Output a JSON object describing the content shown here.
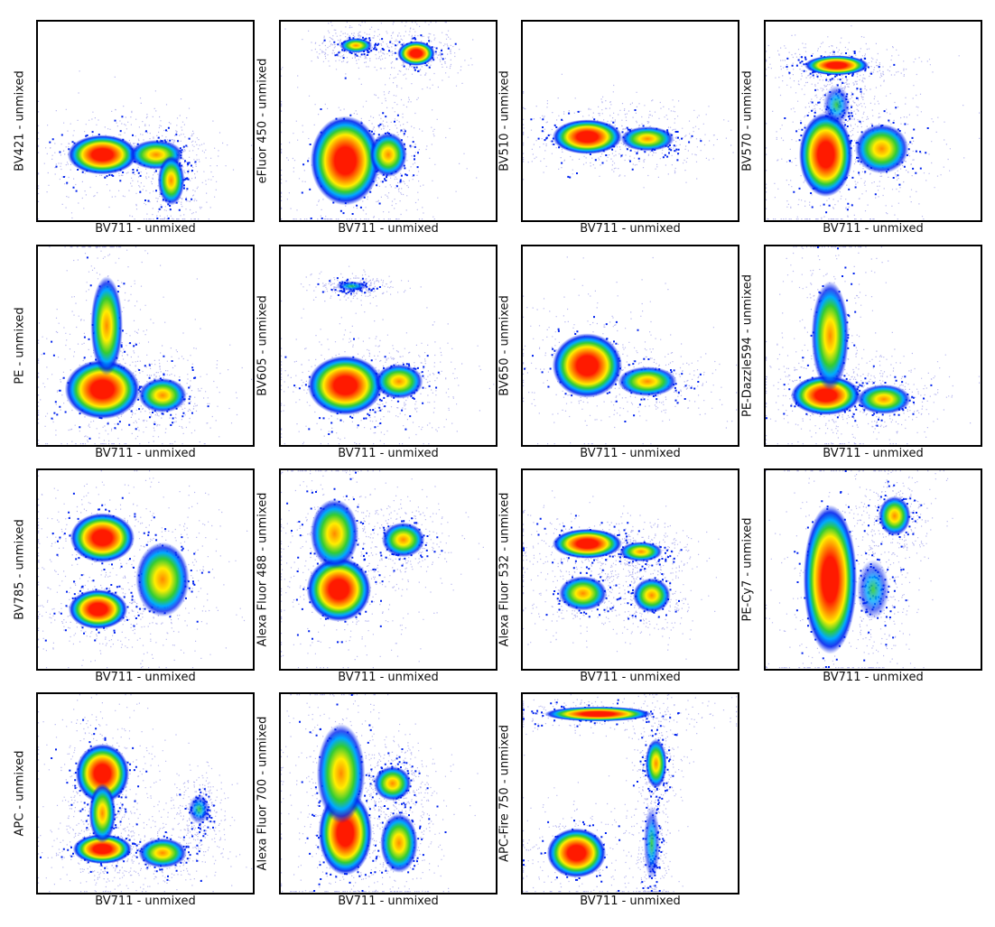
{
  "chart_data": [
    {
      "type": "scatter",
      "subtype": "density",
      "xlabel": "BV711 - unmixed",
      "ylabel": "BV421 - unmixed",
      "populations": [
        [
          0.3,
          0.33,
          0.13,
          0.08,
          1
        ],
        [
          0.55,
          0.33,
          0.1,
          0.06,
          0.7
        ],
        [
          0.62,
          0.2,
          0.05,
          0.1,
          0.6
        ]
      ]
    },
    {
      "type": "scatter",
      "subtype": "density",
      "xlabel": "BV711 - unmixed",
      "ylabel": "eFluor 450 - unmixed",
      "populations": [
        [
          0.3,
          0.3,
          0.13,
          0.18,
          1
        ],
        [
          0.5,
          0.33,
          0.07,
          0.09,
          0.6
        ],
        [
          0.35,
          0.88,
          0.06,
          0.03,
          0.6
        ],
        [
          0.63,
          0.84,
          0.07,
          0.05,
          0.85
        ]
      ]
    },
    {
      "type": "scatter",
      "subtype": "density",
      "xlabel": "BV711 - unmixed",
      "ylabel": "BV510 - unmixed",
      "populations": [
        [
          0.3,
          0.42,
          0.13,
          0.07,
          1
        ],
        [
          0.58,
          0.41,
          0.1,
          0.05,
          0.8
        ]
      ]
    },
    {
      "type": "scatter",
      "subtype": "density",
      "xlabel": "BV711 - unmixed",
      "ylabel": "BV570 - unmixed",
      "populations": [
        [
          0.33,
          0.78,
          0.12,
          0.04,
          1
        ],
        [
          0.28,
          0.33,
          0.1,
          0.17,
          0.9
        ],
        [
          0.54,
          0.36,
          0.1,
          0.1,
          0.7
        ],
        [
          0.33,
          0.58,
          0.05,
          0.08,
          0.5
        ]
      ]
    },
    {
      "type": "scatter",
      "subtype": "density",
      "xlabel": "BV711 - unmixed",
      "ylabel": "PE - unmixed",
      "populations": [
        [
          0.3,
          0.28,
          0.14,
          0.12,
          1
        ],
        [
          0.32,
          0.6,
          0.06,
          0.2,
          0.6
        ],
        [
          0.58,
          0.25,
          0.09,
          0.07,
          0.7
        ]
      ]
    },
    {
      "type": "scatter",
      "subtype": "density",
      "xlabel": "BV711 - unmixed",
      "ylabel": "BV605 - unmixed",
      "populations": [
        [
          0.3,
          0.3,
          0.14,
          0.12,
          1
        ],
        [
          0.55,
          0.32,
          0.09,
          0.07,
          0.75
        ],
        [
          0.33,
          0.8,
          0.06,
          0.02,
          0.4
        ]
      ]
    },
    {
      "type": "scatter",
      "subtype": "density",
      "xlabel": "BV711 - unmixed",
      "ylabel": "BV650 - unmixed",
      "populations": [
        [
          0.3,
          0.4,
          0.13,
          0.13,
          1
        ],
        [
          0.58,
          0.32,
          0.11,
          0.06,
          0.75
        ]
      ]
    },
    {
      "type": "scatter",
      "subtype": "density",
      "xlabel": "BV711 - unmixed",
      "ylabel": "PE-Dazzle594 - unmixed",
      "populations": [
        [
          0.28,
          0.25,
          0.13,
          0.08,
          1
        ],
        [
          0.3,
          0.55,
          0.07,
          0.22,
          0.7
        ],
        [
          0.55,
          0.23,
          0.1,
          0.06,
          0.8
        ]
      ]
    },
    {
      "type": "scatter",
      "subtype": "density",
      "xlabel": "BV711 - unmixed",
      "ylabel": "BV785 - unmixed",
      "populations": [
        [
          0.3,
          0.66,
          0.12,
          0.1,
          1
        ],
        [
          0.28,
          0.3,
          0.11,
          0.08,
          1
        ],
        [
          0.58,
          0.45,
          0.1,
          0.15,
          0.6
        ]
      ]
    },
    {
      "type": "scatter",
      "subtype": "density",
      "xlabel": "BV711 - unmixed",
      "ylabel": "Alexa Fluor 488 - unmixed",
      "populations": [
        [
          0.27,
          0.4,
          0.12,
          0.13,
          1
        ],
        [
          0.25,
          0.68,
          0.09,
          0.14,
          0.7
        ],
        [
          0.57,
          0.65,
          0.08,
          0.07,
          0.75
        ]
      ]
    },
    {
      "type": "scatter",
      "subtype": "density",
      "xlabel": "BV711 - unmixed",
      "ylabel": "Alexa Fluor 532 - unmixed",
      "populations": [
        [
          0.3,
          0.63,
          0.13,
          0.06,
          1
        ],
        [
          0.55,
          0.59,
          0.08,
          0.04,
          0.75
        ],
        [
          0.28,
          0.38,
          0.09,
          0.07,
          0.8
        ],
        [
          0.6,
          0.37,
          0.07,
          0.07,
          0.7
        ]
      ]
    },
    {
      "type": "scatter",
      "subtype": "density",
      "xlabel": "BV711 - unmixed",
      "ylabel": "PE-Cy7 - unmixed",
      "populations": [
        [
          0.3,
          0.45,
          0.1,
          0.3,
          1
        ],
        [
          0.6,
          0.77,
          0.06,
          0.08,
          0.75
        ],
        [
          0.5,
          0.4,
          0.06,
          0.12,
          0.45
        ]
      ]
    },
    {
      "type": "scatter",
      "subtype": "density",
      "xlabel": "BV711 - unmixed",
      "ylabel": "APC - unmixed",
      "populations": [
        [
          0.3,
          0.22,
          0.11,
          0.06,
          1
        ],
        [
          0.3,
          0.6,
          0.1,
          0.12,
          0.95
        ],
        [
          0.3,
          0.4,
          0.05,
          0.12,
          0.6
        ],
        [
          0.58,
          0.2,
          0.09,
          0.06,
          0.8
        ],
        [
          0.75,
          0.42,
          0.04,
          0.06,
          0.3
        ]
      ]
    },
    {
      "type": "scatter",
      "subtype": "density",
      "xlabel": "BV711 - unmixed",
      "ylabel": "Alexa Fluor 700 - unmixed",
      "populations": [
        [
          0.3,
          0.3,
          0.1,
          0.17,
          1
        ],
        [
          0.28,
          0.6,
          0.09,
          0.2,
          0.8
        ],
        [
          0.55,
          0.25,
          0.07,
          0.12,
          0.7
        ],
        [
          0.52,
          0.55,
          0.07,
          0.07,
          0.6
        ]
      ]
    },
    {
      "type": "scatter",
      "subtype": "density",
      "xlabel": "BV711 - unmixed",
      "ylabel": "APC-Fire 750 - unmixed",
      "populations": [
        [
          0.25,
          0.2,
          0.11,
          0.1,
          1
        ],
        [
          0.35,
          0.9,
          0.2,
          0.03,
          1
        ],
        [
          0.62,
          0.65,
          0.04,
          0.1,
          0.55
        ],
        [
          0.6,
          0.25,
          0.03,
          0.15,
          0.45
        ]
      ]
    }
  ],
  "colors": {
    "high": "#ff1a00",
    "mid_high": "#ff8800",
    "mid": "#ffee00",
    "mid_low": "#33cc33",
    "low": "#00aaff",
    "lowest": "#0022ee",
    "sparse": "#b8b8f0"
  }
}
